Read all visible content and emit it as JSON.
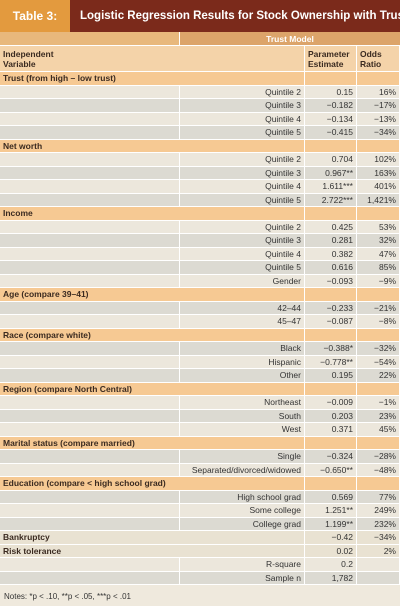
{
  "header": {
    "label": "Table 3:",
    "title": "Logistic Regression Results for Stock Ownership with Trust"
  },
  "table": {
    "model_header": "Trust Model",
    "columns": [
      "Independent Variable",
      "Parameter Estimate",
      "Odds Ratio"
    ],
    "sections": [
      {
        "title": "Trust (from high – low trust)",
        "rows": [
          [
            "Quintile 2",
            "0.15",
            "16%"
          ],
          [
            "Quintile 3",
            "−0.182",
            "−17%"
          ],
          [
            "Quintile 4",
            "−0.134",
            "−13%"
          ],
          [
            "Quintile 5",
            "−0.415",
            "−34%"
          ]
        ]
      },
      {
        "title": "Net worth",
        "rows": [
          [
            "Quintile 2",
            "0.704",
            "102%"
          ],
          [
            "Quintile 3",
            "0.967**",
            "163%"
          ],
          [
            "Quintile 4",
            "1.611***",
            "401%"
          ],
          [
            "Quintile 5",
            "2.722***",
            "1,421%"
          ]
        ]
      },
      {
        "title": "Income",
        "rows": [
          [
            "Quintile 2",
            "0.425",
            "53%"
          ],
          [
            "Quintile 3",
            "0.281",
            "32%"
          ],
          [
            "Quintile 4",
            "0.382",
            "47%"
          ],
          [
            "Quintile 5",
            "0.616",
            "85%"
          ],
          [
            "Gender",
            "−0.093",
            "−9%"
          ]
        ]
      },
      {
        "title": "Age (compare 39–41)",
        "rows": [
          [
            "42–44",
            "−0.233",
            "−21%"
          ],
          [
            "45–47",
            "−0.087",
            "−8%"
          ]
        ]
      },
      {
        "title": "Race (compare white)",
        "rows": [
          [
            "Black",
            "−0.388*",
            "−32%"
          ],
          [
            "Hispanic",
            "−0.778**",
            "−54%"
          ],
          [
            "Other",
            "0.195",
            "22%"
          ]
        ]
      },
      {
        "title": "Region (compare North Central)",
        "rows": [
          [
            "Northeast",
            "−0.009",
            "−1%"
          ],
          [
            "South",
            "0.203",
            "23%"
          ],
          [
            "West",
            "0.371",
            "45%"
          ]
        ]
      },
      {
        "title": "Marital status (compare married)",
        "rows": [
          [
            "Single",
            "−0.324",
            "−28%"
          ],
          [
            "Separated/divorced/widowed",
            "−0.650**",
            "−48%"
          ]
        ]
      },
      {
        "title": "Education (compare < high school grad)",
        "rows": [
          [
            "High school grad",
            "0.569",
            "77%"
          ],
          [
            "Some college",
            "1.251**",
            "249%"
          ],
          [
            "College grad",
            "1.199**",
            "232%"
          ]
        ]
      },
      {
        "title": "Bankruptcy",
        "estimate": "−0.42",
        "odds": "−34%",
        "rows": []
      },
      {
        "title": "Risk tolerance",
        "estimate": "0.02",
        "odds": "2%",
        "rows": [
          [
            "R-square",
            "0.2"
          ],
          [
            "Sample n",
            "1,782"
          ]
        ]
      }
    ]
  },
  "notes": "Notes: *p < .10, **p < .05, ***p < .01"
}
